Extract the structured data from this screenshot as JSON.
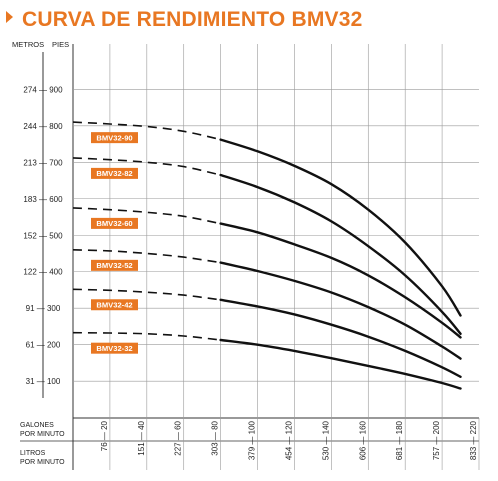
{
  "title": "CURVA DE RENDIMIENTO BMV32",
  "colors": {
    "accent": "#e87722",
    "grid": "#9a9a9a",
    "curve": "#111111"
  },
  "labels": {
    "metros": "METROS",
    "pies": "PIES",
    "galones_line1": "GALONES",
    "galones_line2": "POR MINUTO",
    "litros_line1": "LITROS",
    "litros_line2": "POR MINUTO"
  },
  "chart_data": {
    "type": "line",
    "xlabel": "GALONES POR MINUTO",
    "ylabel": "PIES",
    "xlim": [
      0,
      220
    ],
    "ylim": [
      0,
      1000
    ],
    "x_ticks_gpm": [
      "20",
      "40",
      "60",
      "80",
      "100",
      "120",
      "140",
      "160",
      "180",
      "200",
      "220"
    ],
    "x_ticks_lpm": [
      "76",
      "151",
      "227",
      "303",
      "379",
      "454",
      "530",
      "606",
      "681",
      "757",
      "833"
    ],
    "y_ticks_ft": [
      "100",
      "200",
      "300",
      "400",
      "500",
      "600",
      "700",
      "800",
      "900"
    ],
    "y_ticks_m": [
      "31",
      "61",
      "91",
      "122",
      "152",
      "183",
      "213",
      "244",
      "274"
    ],
    "dashed_x_range": [
      0,
      80
    ],
    "series": [
      {
        "name": "BMV32-90",
        "x": [
          0,
          20,
          40,
          60,
          80,
          100,
          120,
          140,
          160,
          180,
          200,
          210
        ],
        "y": [
          810,
          805,
          798,
          785,
          762,
          730,
          690,
          640,
          570,
          480,
          360,
          280
        ]
      },
      {
        "name": "BMV32-82",
        "x": [
          0,
          20,
          40,
          60,
          80,
          100,
          120,
          140,
          160,
          180,
          200,
          210
        ],
        "y": [
          712,
          707,
          700,
          688,
          665,
          632,
          590,
          538,
          470,
          390,
          290,
          230
        ]
      },
      {
        "name": "BMV32-60",
        "x": [
          0,
          20,
          40,
          60,
          80,
          100,
          120,
          140,
          160,
          180,
          200,
          210
        ],
        "y": [
          575,
          570,
          563,
          552,
          532,
          508,
          475,
          438,
          390,
          330,
          260,
          220
        ]
      },
      {
        "name": "BMV32-52",
        "x": [
          0,
          20,
          40,
          60,
          80,
          100,
          120,
          140,
          160,
          180,
          200,
          210
        ],
        "y": [
          460,
          457,
          450,
          440,
          425,
          402,
          375,
          343,
          303,
          255,
          195,
          162
        ]
      },
      {
        "name": "BMV32-42",
        "x": [
          0,
          20,
          40,
          60,
          80,
          100,
          120,
          140,
          160,
          180,
          200,
          210
        ],
        "y": [
          352,
          349,
          344,
          336,
          323,
          305,
          283,
          255,
          222,
          183,
          138,
          112
        ]
      },
      {
        "name": "BMV32-32",
        "x": [
          0,
          20,
          40,
          60,
          80,
          100,
          120,
          140,
          160,
          180,
          200,
          210
        ],
        "y": [
          233,
          232,
          230,
          224,
          213,
          200,
          183,
          163,
          142,
          120,
          95,
          80
        ]
      }
    ]
  }
}
